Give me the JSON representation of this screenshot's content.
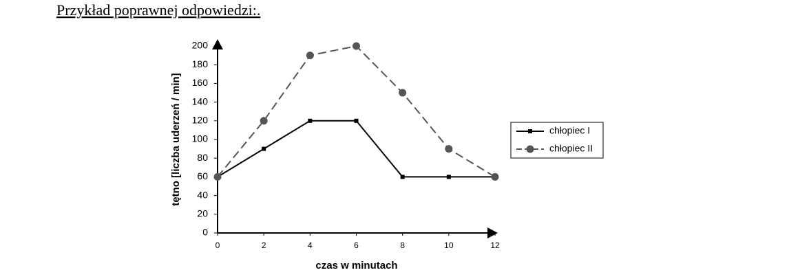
{
  "heading": "Przykład poprawnej odpowiedzi:.",
  "chart_data": {
    "type": "line",
    "x_label": "czas w minutach",
    "y_label": "tętno [liczba uderzeń / min]",
    "x": [
      0,
      2,
      4,
      6,
      8,
      10,
      12
    ],
    "series": [
      {
        "name": "chłopiec I",
        "color": "#000000",
        "dash": false,
        "marker": "square",
        "values": [
          60,
          90,
          120,
          120,
          60,
          60,
          60
        ]
      },
      {
        "name": "chłopiec II",
        "color": "#555555",
        "dash": true,
        "marker": "circle",
        "values": [
          60,
          120,
          190,
          200,
          150,
          90,
          60
        ]
      }
    ],
    "xlim": [
      0,
      12
    ],
    "xticks": [
      0,
      2,
      4,
      6,
      8,
      10,
      12
    ],
    "ylim": [
      0,
      200
    ],
    "yticks": [
      0,
      20,
      40,
      60,
      80,
      100,
      120,
      140,
      160,
      180,
      200
    ],
    "grid": false,
    "legend": "right"
  }
}
